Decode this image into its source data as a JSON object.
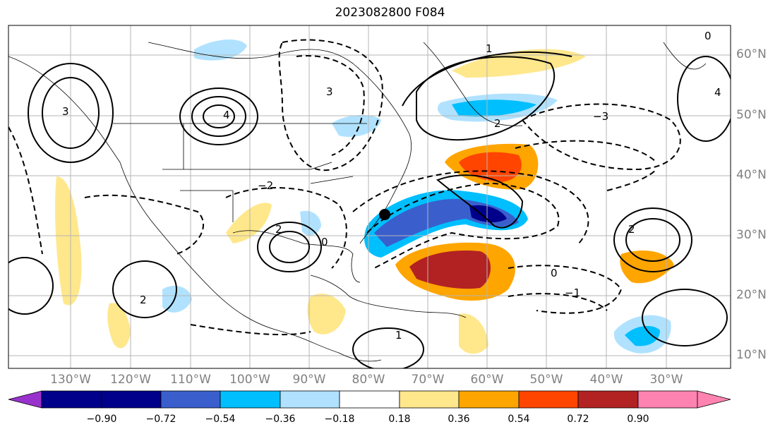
{
  "title": "2023082800 F084",
  "lat_labels": [
    "60°N",
    "50°N",
    "40°N",
    "30°N",
    "20°N",
    "10°N"
  ],
  "lon_labels": [
    "130°W",
    "120°W",
    "110°W",
    "100°W",
    "90°W",
    "80°W",
    "70°W",
    "60°W",
    "50°W",
    "40°W",
    "30°W"
  ],
  "colorbar": {
    "ticks": [
      "−0.90",
      "−0.72",
      "−0.54",
      "−0.36",
      "−0.18",
      "0.18",
      "0.36",
      "0.54",
      "0.72",
      "0.90"
    ],
    "colors": [
      "#9932cc",
      "#00008b",
      "#3a5fcd",
      "#00bfff",
      "#b0e2ff",
      "#ffffff",
      "#ffe78c",
      "#ffa500",
      "#ff4500",
      "#b22222",
      "#ff83b0"
    ]
  },
  "storm_marker": {
    "symbol": "●"
  },
  "contour_labels": {
    "north_pacific": "3",
    "great_plains": "4",
    "hudson_bay": "3",
    "labrador": "1",
    "west_atlantic": "−3",
    "newfoundland": "2",
    "mid_atlantic": "−2",
    "azores": "2",
    "gulf": "2",
    "mexico": "0",
    "caribbean": "1",
    "subtropics": "−1",
    "tropics": "0",
    "greenland": "0",
    "east_atlantic": "4",
    "mexico_pacific": "2"
  }
}
